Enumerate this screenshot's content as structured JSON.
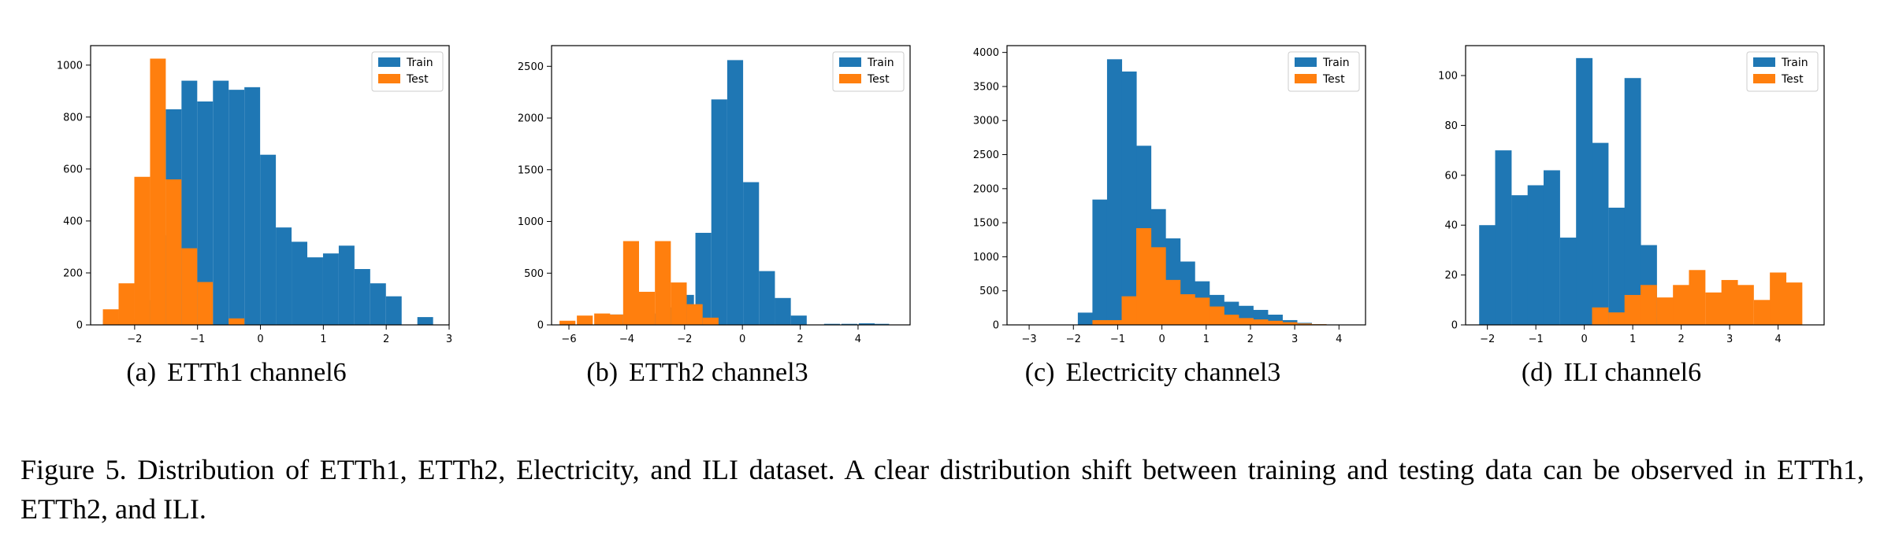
{
  "chart_data": [
    {
      "type": "bar",
      "panel_label": "(a)",
      "subtitle": "ETTh1 channel6",
      "xlim": [
        -2.7,
        3.0
      ],
      "ylim": [
        0,
        1075
      ],
      "xticks": [
        -2,
        -1,
        0,
        1,
        2,
        3
      ],
      "yticks": [
        0,
        200,
        400,
        600,
        800,
        1000
      ],
      "legend_position": "top-right",
      "series": [
        {
          "name": "Train",
          "color": "#1f77b4",
          "bin_width": 0.25,
          "x": [
            -2.38,
            -2.13,
            -1.88,
            -1.63,
            -1.38,
            -1.13,
            -0.88,
            -0.63,
            -0.38,
            -0.13,
            0.12,
            0.37,
            0.62,
            0.87,
            1.12,
            1.37,
            1.62,
            1.87,
            2.12,
            2.37,
            2.62
          ],
          "values": [
            20,
            20,
            95,
            345,
            830,
            940,
            860,
            940,
            905,
            915,
            655,
            375,
            320,
            260,
            275,
            305,
            215,
            160,
            110,
            0,
            30
          ]
        },
        {
          "name": "Test",
          "color": "#ff7f0e",
          "bin_width": 0.25,
          "x": [
            -2.38,
            -2.13,
            -1.88,
            -1.63,
            -1.38,
            -1.13,
            -0.88,
            -0.63,
            -0.38
          ],
          "values": [
            60,
            160,
            570,
            1025,
            560,
            295,
            165,
            0,
            25
          ]
        }
      ]
    },
    {
      "type": "bar",
      "panel_label": "(b)",
      "subtitle": "ETTh2 channel3",
      "xlim": [
        -6.6,
        5.8
      ],
      "ylim": [
        0,
        2700
      ],
      "xticks": [
        -6,
        -4,
        -2,
        0,
        2,
        4
      ],
      "yticks": [
        0,
        500,
        1000,
        1500,
        2000,
        2500
      ],
      "legend_position": "top-right",
      "series": [
        {
          "name": "Train",
          "color": "#1f77b4",
          "bin_width": 0.55,
          "x": [
            -4.4,
            -3.95,
            -3.2,
            -2.55,
            -1.95,
            -1.35,
            -0.8,
            -0.25,
            0.3,
            0.85,
            1.4,
            1.95,
            3.1,
            3.7,
            4.3,
            4.8
          ],
          "values": [
            100,
            20,
            110,
            170,
            290,
            890,
            2180,
            2560,
            1380,
            520,
            260,
            90,
            10,
            10,
            15,
            10
          ]
        },
        {
          "name": "Test",
          "color": "#ff7f0e",
          "bin_width": 0.55,
          "x": [
            -6.05,
            -5.45,
            -4.85,
            -4.4,
            -3.85,
            -3.3,
            -2.75,
            -2.2,
            -1.65,
            -1.1
          ],
          "values": [
            40,
            90,
            110,
            100,
            810,
            320,
            810,
            410,
            200,
            70
          ]
        }
      ]
    },
    {
      "type": "bar",
      "panel_label": "(c)",
      "subtitle": "Electricity channel3",
      "xlim": [
        -3.5,
        4.6
      ],
      "ylim": [
        0,
        4100
      ],
      "xticks": [
        -3,
        -2,
        -1,
        0,
        1,
        2,
        3,
        4
      ],
      "yticks": [
        0,
        500,
        1000,
        1500,
        2000,
        2500,
        3000,
        3500,
        4000
      ],
      "legend_position": "top-right",
      "series": [
        {
          "name": "Train",
          "color": "#1f77b4",
          "bin_width": 0.34,
          "x": [
            -3.05,
            -2.72,
            -2.39,
            -2.06,
            -1.73,
            -1.4,
            -1.07,
            -0.74,
            -0.41,
            -0.08,
            0.25,
            0.58,
            0.91,
            1.24,
            1.57,
            1.9,
            2.23,
            2.56,
            2.89,
            3.22,
            3.55,
            3.88
          ],
          "values": [
            5,
            5,
            5,
            5,
            180,
            1840,
            3900,
            3720,
            2630,
            1700,
            1270,
            930,
            640,
            440,
            340,
            280,
            220,
            150,
            70,
            30,
            10,
            5
          ]
        },
        {
          "name": "Test",
          "color": "#ff7f0e",
          "bin_width": 0.34,
          "x": [
            -1.4,
            -1.07,
            -0.74,
            -0.41,
            -0.08,
            0.25,
            0.58,
            0.91,
            1.24,
            1.57,
            1.9,
            2.23,
            2.56,
            2.89,
            3.22,
            3.55,
            3.88
          ],
          "values": [
            70,
            70,
            420,
            1420,
            1140,
            660,
            450,
            400,
            270,
            150,
            100,
            80,
            60,
            40,
            20,
            10,
            5
          ]
        }
      ]
    },
    {
      "type": "bar",
      "panel_label": "(d)",
      "subtitle": "ILI channel6",
      "xlim": [
        -2.45,
        4.95
      ],
      "ylim": [
        0,
        112
      ],
      "xticks": [
        -2,
        -1,
        0,
        1,
        2,
        3,
        4
      ],
      "yticks": [
        0,
        20,
        40,
        60,
        80,
        100
      ],
      "legend_position": "top-right",
      "series": [
        {
          "name": "Train",
          "color": "#1f77b4",
          "bin_width": 0.34,
          "x": [
            -2.0,
            -1.67,
            -1.33,
            -1.0,
            -0.67,
            -0.33,
            0.0,
            0.33,
            0.67,
            1.0,
            1.33,
            1.67
          ],
          "values": [
            40,
            70,
            52,
            56,
            62,
            35,
            107,
            73,
            47,
            99,
            32,
            3
          ]
        },
        {
          "name": "Test",
          "color": "#ff7f0e",
          "bin_width": 0.34,
          "x": [
            0.33,
            0.67,
            1.0,
            1.33,
            1.67,
            2.0,
            2.33,
            2.67,
            3.0,
            3.33,
            3.67,
            4.0,
            4.33
          ],
          "values": [
            7,
            5,
            12,
            16,
            11,
            16,
            22,
            13,
            18,
            16,
            10,
            21,
            17
          ]
        }
      ]
    }
  ],
  "caption": "Figure 5. Distribution of ETTh1, ETTh2, Electricity, and ILI dataset. A clear distribution shift between training and testing data can be observed in ETTh1, ETTh2, and ILI."
}
